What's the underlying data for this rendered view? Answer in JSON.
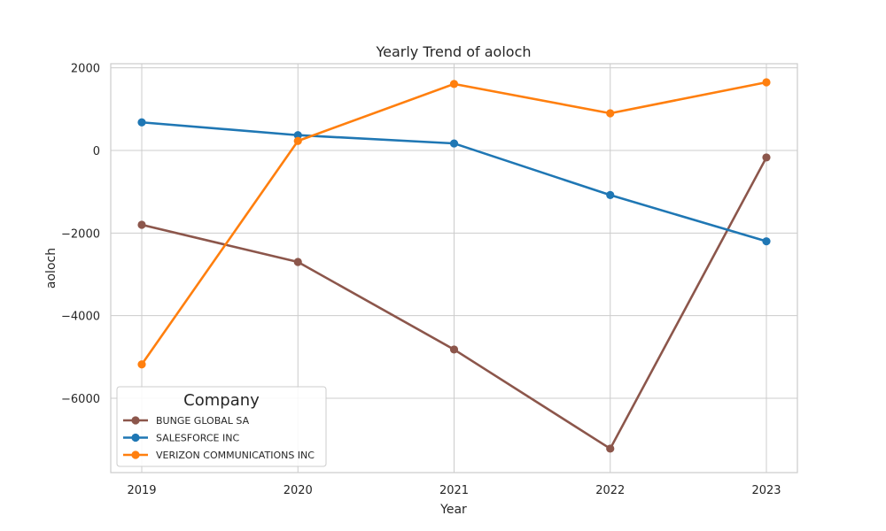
{
  "chart_data": {
    "type": "line",
    "title": "Yearly Trend of aoloch",
    "xlabel": "Year",
    "ylabel": "aoloch",
    "x": [
      "2019",
      "2020",
      "2021",
      "2022",
      "2023"
    ],
    "yticks": [
      "2000",
      "0",
      "−2000",
      "−4000",
      "−6000"
    ],
    "ytick_values": [
      2000,
      0,
      -2000,
      -4000,
      -6000
    ],
    "ylim": [
      -7800,
      2100
    ],
    "grid": true,
    "legend": {
      "title": "Company",
      "placement": "lower-left"
    },
    "series": [
      {
        "name": "BUNGE GLOBAL SA",
        "color": "#8c564b",
        "values": [
          -1800,
          -2700,
          -4820,
          -7220,
          -170
        ]
      },
      {
        "name": "SALESFORCE INC",
        "color": "#1f77b4",
        "values": [
          680,
          370,
          170,
          -1080,
          -2200
        ]
      },
      {
        "name": "VERIZON COMMUNICATIONS INC",
        "color": "#ff7f0e",
        "values": [
          -5180,
          230,
          1610,
          900,
          1650
        ]
      }
    ]
  }
}
